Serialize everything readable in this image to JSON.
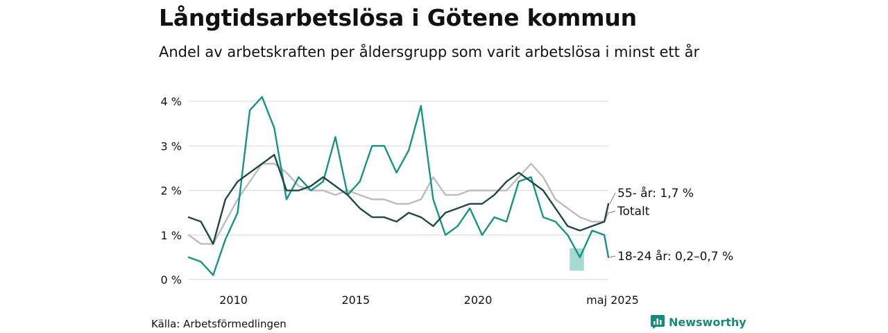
{
  "title": "Långtidsarbetslösa i Götene kommun",
  "subtitle": "Andel av arbetskraften per åldersgrupp som varit arbetslösa i minst ett år",
  "source": "Källa: Arbetsförmedlingen",
  "brand": "Newsworthy",
  "brand_icon": "bar-chart-logo-icon",
  "chart_data": {
    "type": "line",
    "ylim": [
      0,
      4.25
    ],
    "y_ticks": [
      0,
      1,
      2,
      3,
      4
    ],
    "y_tick_labels": [
      "0 %",
      "1 %",
      "2 %",
      "3 %",
      "4 %"
    ],
    "xlim": [
      "2008-03",
      "2025-05"
    ],
    "x_ticks": [
      2010,
      2015,
      2020
    ],
    "x_tick_labels": [
      "2010",
      "2015",
      "2020"
    ],
    "end_label": "maj 2025",
    "grid": true,
    "colors": {
      "grid": "#dddddd",
      "totalt": "#bdbbc0",
      "age55": "#1d4a40",
      "age1824": "#159385",
      "band": "#8fd1c7"
    },
    "series": [
      {
        "name": "Totalt",
        "end_label": "Totalt",
        "x": [
          "2008-03",
          "2008-09",
          "2009-03",
          "2009-09",
          "2010-03",
          "2010-09",
          "2011-03",
          "2011-09",
          "2012-03",
          "2012-09",
          "2013-03",
          "2013-09",
          "2014-03",
          "2014-09",
          "2015-03",
          "2015-09",
          "2016-03",
          "2016-09",
          "2017-03",
          "2017-09",
          "2018-03",
          "2018-09",
          "2019-03",
          "2019-09",
          "2020-03",
          "2020-09",
          "2021-03",
          "2021-09",
          "2022-03",
          "2022-09",
          "2023-03",
          "2023-09",
          "2024-03",
          "2024-09",
          "2025-03",
          "2025-05"
        ],
        "values": [
          1.0,
          0.8,
          0.8,
          1.3,
          1.8,
          2.2,
          2.6,
          2.6,
          2.4,
          2.1,
          2.0,
          2.0,
          1.9,
          2.0,
          1.9,
          1.8,
          1.8,
          1.7,
          1.7,
          1.8,
          2.3,
          1.9,
          1.9,
          2.0,
          2.0,
          2.0,
          2.0,
          2.3,
          2.6,
          2.3,
          1.8,
          1.6,
          1.4,
          1.3,
          1.3,
          1.5
        ]
      },
      {
        "name": "55- år",
        "end_label": "55- år: 1,7 %",
        "x": [
          "2008-03",
          "2008-09",
          "2009-03",
          "2009-09",
          "2010-03",
          "2010-09",
          "2011-03",
          "2011-09",
          "2012-03",
          "2012-09",
          "2013-03",
          "2013-09",
          "2014-03",
          "2014-09",
          "2015-03",
          "2015-09",
          "2016-03",
          "2016-09",
          "2017-03",
          "2017-09",
          "2018-03",
          "2018-09",
          "2019-03",
          "2019-09",
          "2020-03",
          "2020-09",
          "2021-03",
          "2021-09",
          "2022-03",
          "2022-09",
          "2023-03",
          "2023-09",
          "2024-03",
          "2024-09",
          "2025-03",
          "2025-05"
        ],
        "values": [
          1.4,
          1.3,
          0.8,
          1.8,
          2.2,
          2.4,
          2.6,
          2.8,
          2.0,
          2.0,
          2.1,
          2.3,
          2.1,
          1.9,
          1.6,
          1.4,
          1.4,
          1.3,
          1.5,
          1.4,
          1.2,
          1.5,
          1.6,
          1.7,
          1.7,
          1.9,
          2.2,
          2.4,
          2.2,
          2.0,
          1.6,
          1.2,
          1.1,
          1.2,
          1.3,
          1.7
        ]
      },
      {
        "name": "18-24 år",
        "end_label": "18-24 år: 0,2–0,7 %",
        "x": [
          "2008-03",
          "2008-09",
          "2009-03",
          "2009-09",
          "2010-03",
          "2010-09",
          "2011-03",
          "2011-09",
          "2012-03",
          "2012-09",
          "2013-03",
          "2013-09",
          "2014-03",
          "2014-09",
          "2015-03",
          "2015-09",
          "2016-03",
          "2016-09",
          "2017-03",
          "2017-09",
          "2018-03",
          "2018-09",
          "2019-03",
          "2019-09",
          "2020-03",
          "2020-09",
          "2021-03",
          "2021-09",
          "2022-03",
          "2022-09",
          "2023-03",
          "2023-09",
          "2024-03",
          "2024-09",
          "2025-03",
          "2025-05"
        ],
        "values": [
          0.5,
          0.4,
          0.1,
          0.9,
          1.5,
          3.8,
          4.1,
          3.4,
          1.8,
          2.3,
          2.0,
          2.2,
          3.2,
          1.9,
          2.2,
          3.0,
          3.0,
          2.4,
          2.9,
          3.9,
          1.8,
          1.0,
          1.2,
          1.6,
          1.0,
          1.4,
          1.3,
          2.2,
          2.3,
          1.4,
          1.3,
          1.0,
          0.5,
          1.1,
          1.0,
          0.5
        ]
      }
    ],
    "range_band": {
      "series": "18-24 år",
      "x": [
        "2023-10",
        "2024-02",
        "2024-05"
      ],
      "low": [
        0.2,
        0.2,
        0.2
      ],
      "high": [
        0.7,
        0.7,
        0.7
      ]
    }
  }
}
